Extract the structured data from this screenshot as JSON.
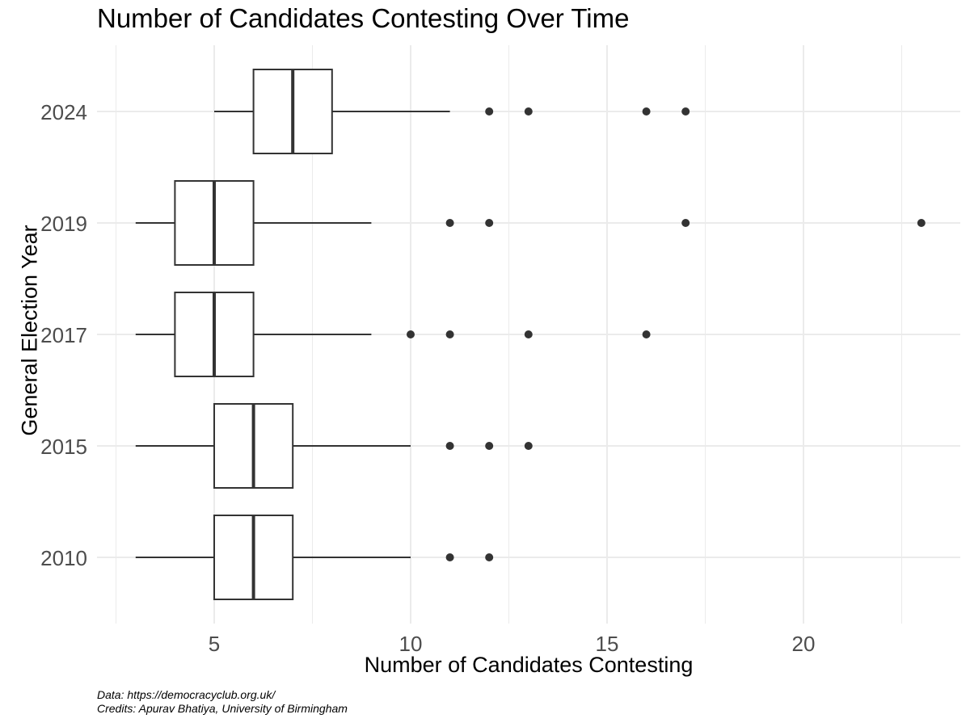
{
  "chart_data": {
    "type": "boxplot",
    "orientation": "horizontal",
    "title": "Number of Candidates Contesting Over Time",
    "xlabel": "Number of Candidates Contesting",
    "ylabel": "General Election Year",
    "xlim": [
      2.5,
      24.0
    ],
    "x_ticks": [
      5,
      10,
      15,
      20
    ],
    "x_minor_ticks": [
      2.5,
      7.5,
      12.5,
      17.5,
      22.5
    ],
    "categories": [
      "2010",
      "2015",
      "2017",
      "2019",
      "2024"
    ],
    "series": [
      {
        "category": "2010",
        "whisker_low": 3,
        "q1": 5,
        "median": 6,
        "q3": 7,
        "whisker_high": 10,
        "outliers": [
          11,
          12
        ]
      },
      {
        "category": "2015",
        "whisker_low": 3,
        "q1": 5,
        "median": 6,
        "q3": 7,
        "whisker_high": 10,
        "outliers": [
          11,
          12,
          13
        ]
      },
      {
        "category": "2017",
        "whisker_low": 3,
        "q1": 4,
        "median": 5,
        "q3": 6,
        "whisker_high": 9,
        "outliers": [
          10,
          11,
          13,
          16
        ]
      },
      {
        "category": "2019",
        "whisker_low": 3,
        "q1": 4,
        "median": 5,
        "q3": 6,
        "whisker_high": 9,
        "outliers": [
          11,
          12,
          17,
          23
        ]
      },
      {
        "category": "2024",
        "whisker_low": 5,
        "q1": 6,
        "median": 7,
        "q3": 8,
        "whisker_high": 11,
        "outliers": [
          12,
          13,
          16,
          17
        ]
      }
    ],
    "grid": true,
    "legend": "none"
  },
  "caption": {
    "line1": "Data: https://democracyclub.org.uk/",
    "line2": "Credits: Apurav Bhatiya, University of Birmingham"
  },
  "colors": {
    "grid": "#ebebeb",
    "box_stroke": "#333333",
    "outlier": "#333333",
    "tick_text": "#4d4d4d"
  }
}
